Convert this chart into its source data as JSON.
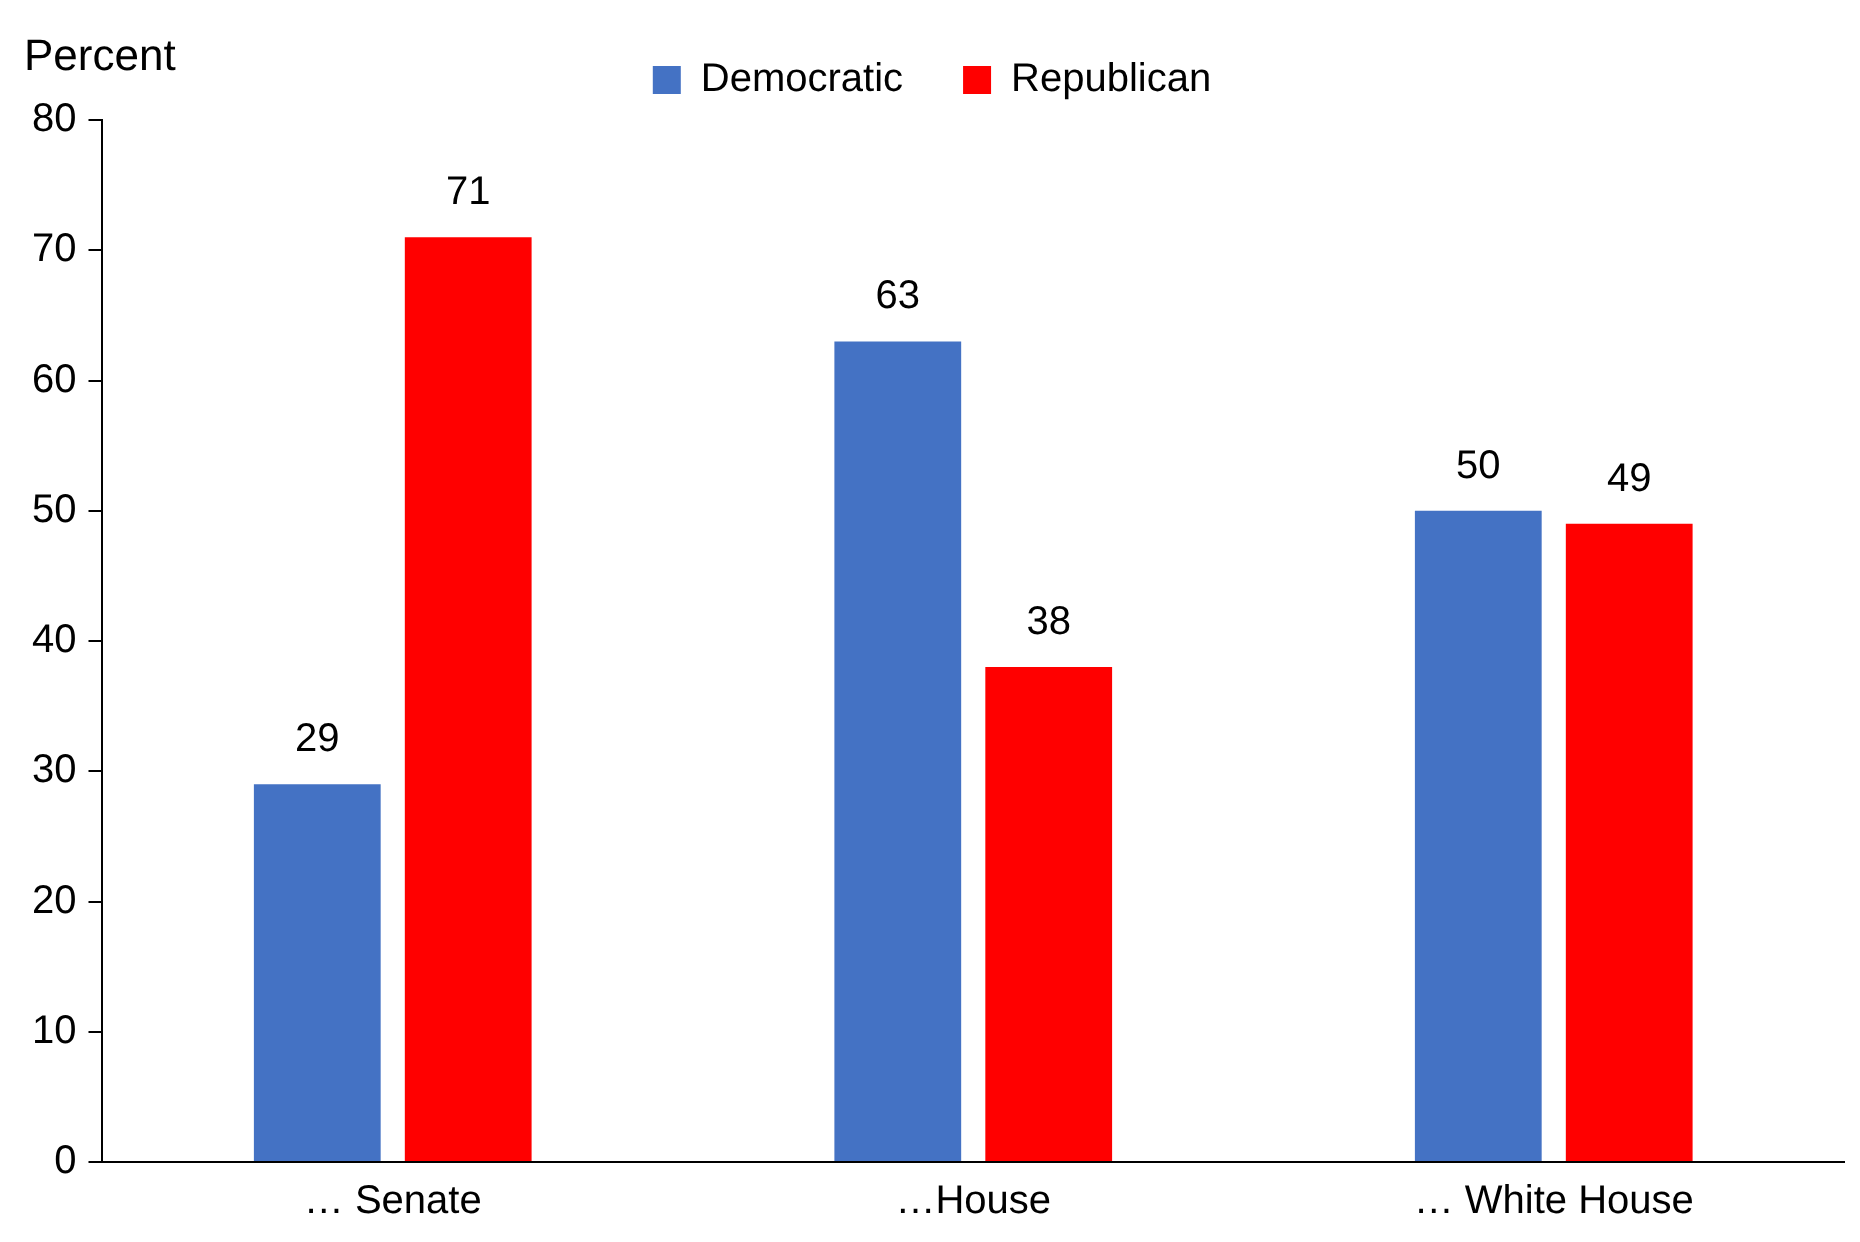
{
  "chart_data": {
    "type": "bar",
    "ylabel": "Percent",
    "categories": [
      "… Senate",
      "…House",
      "… White House"
    ],
    "series": [
      {
        "name": "Democratic",
        "color": "#4472c4",
        "values": [
          29,
          63,
          50
        ]
      },
      {
        "name": "Republican",
        "color": "#ff0000",
        "values": [
          71,
          38,
          49
        ]
      }
    ],
    "ylim": [
      0,
      80
    ],
    "yticks": [
      0,
      10,
      20,
      30,
      40,
      50,
      60,
      70,
      80
    ],
    "grid": false,
    "legend": "top",
    "data_labels": true
  }
}
